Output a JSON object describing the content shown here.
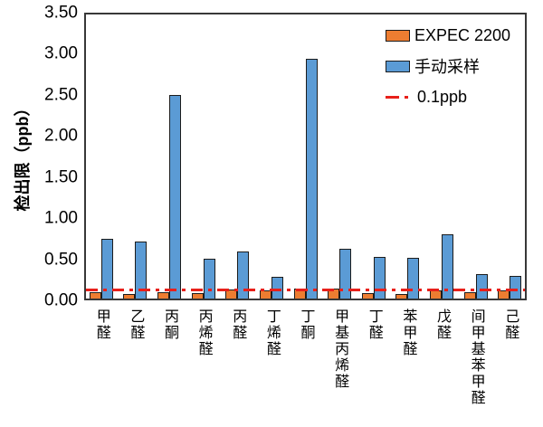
{
  "chart_data": {
    "type": "bar",
    "title": "",
    "ylabel": "检出限（ppb）",
    "xlabel": "",
    "ylim": [
      0,
      3.5
    ],
    "y_ticks": [
      "0.00",
      "0.50",
      "1.00",
      "1.50",
      "2.00",
      "2.50",
      "3.00",
      "3.50"
    ],
    "grid": false,
    "legend_position": "top-right",
    "categories": [
      "甲醛",
      "乙醛",
      "丙酮",
      "丙烯醛",
      "丙醛",
      "丁烯醛",
      "丁酮",
      "甲基丙烯醛",
      "丁醛",
      "苯甲醛",
      "戊醛",
      "间甲基苯甲醛",
      "己醛"
    ],
    "series": [
      {
        "name": "EXPEC 2200",
        "color": "#ED7D31",
        "values": [
          0.08,
          0.06,
          0.08,
          0.07,
          0.11,
          0.1,
          0.12,
          0.12,
          0.07,
          0.05,
          0.1,
          0.08,
          0.1
        ]
      },
      {
        "name": "手动采样",
        "color": "#5B9BD5",
        "values": [
          0.73,
          0.69,
          2.48,
          0.48,
          0.57,
          0.26,
          2.92,
          0.6,
          0.51,
          0.49,
          0.78,
          0.3,
          0.28
        ]
      }
    ],
    "reference_line": {
      "label": "0.1ppb",
      "value": 0.1,
      "color": "#E8201A",
      "style": "dash-dot"
    }
  },
  "colors": {
    "bar_outline": "#1c1c1c",
    "plot_border": "#383838",
    "background": "#ffffff",
    "text": "#000000"
  }
}
